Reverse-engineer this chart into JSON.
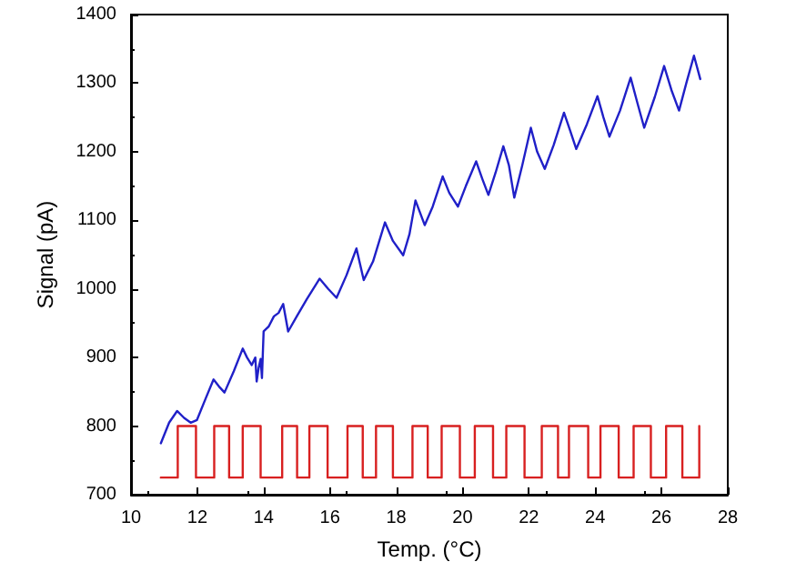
{
  "chart_data": {
    "type": "line",
    "xlabel": "Temp. (°C)",
    "ylabel": "Signal (pA)",
    "xlim": [
      10,
      28
    ],
    "xticks": [
      10,
      12,
      14,
      16,
      18,
      20,
      22,
      24,
      26,
      28
    ],
    "ylim": [
      700,
      1400
    ],
    "yticks": [
      700,
      800,
      900,
      1000,
      1100,
      1200,
      1300,
      1400
    ],
    "grid": false,
    "marker": "none",
    "line_style": "solid",
    "series": [
      {
        "color": "#2020c8",
        "x": [
          10.9,
          11.15,
          11.39,
          11.6,
          11.8,
          11.99,
          12.25,
          12.49,
          12.65,
          12.82,
          13.1,
          13.37,
          13.5,
          13.64,
          13.75,
          13.79,
          13.85,
          13.91,
          13.95,
          14.0,
          14.15,
          14.31,
          14.45,
          14.59,
          14.74,
          15.0,
          15.3,
          15.69,
          15.95,
          16.2,
          16.5,
          16.8,
          17.02,
          17.3,
          17.66,
          17.9,
          18.21,
          18.4,
          18.58,
          18.86,
          19.1,
          19.4,
          19.6,
          19.86,
          20.1,
          20.41,
          20.6,
          20.78,
          21.0,
          21.23,
          21.4,
          21.56,
          21.8,
          22.06,
          22.25,
          22.48,
          22.75,
          23.06,
          23.25,
          23.43,
          23.75,
          24.07,
          24.25,
          24.43,
          24.75,
          25.07,
          25.28,
          25.48,
          25.8,
          26.08,
          26.3,
          26.53,
          26.75,
          26.98,
          27.17
        ],
        "values": [
          775,
          805,
          822,
          812,
          805,
          809,
          840,
          868,
          858,
          849,
          880,
          913,
          900,
          889,
          900,
          865,
          885,
          898,
          870,
          938,
          945,
          960,
          965,
          978,
          938,
          960,
          985,
          1015,
          1000,
          987,
          1020,
          1059,
          1013,
          1040,
          1097,
          1070,
          1049,
          1080,
          1129,
          1093,
          1120,
          1164,
          1140,
          1120,
          1150,
          1186,
          1160,
          1137,
          1170,
          1208,
          1180,
          1133,
          1180,
          1235,
          1200,
          1175,
          1210,
          1257,
          1230,
          1204,
          1240,
          1281,
          1250,
          1222,
          1260,
          1308,
          1270,
          1235,
          1280,
          1325,
          1290,
          1260,
          1300,
          1340,
          1306
        ]
      },
      {
        "color": "#d82020",
        "x": [
          10.9,
          11.41,
          11.41,
          11.96,
          11.96,
          12.51,
          12.51,
          12.96,
          12.96,
          13.37,
          13.37,
          13.91,
          13.91,
          14.56,
          14.56,
          15.01,
          15.01,
          15.38,
          15.38,
          15.93,
          15.93,
          16.53,
          16.53,
          16.99,
          16.99,
          17.39,
          17.39,
          17.9,
          17.9,
          18.49,
          18.49,
          18.95,
          18.95,
          19.37,
          19.37,
          19.92,
          19.92,
          20.37,
          20.37,
          20.92,
          20.92,
          21.32,
          21.32,
          21.87,
          21.87,
          22.39,
          22.39,
          22.88,
          22.88,
          23.21,
          23.21,
          23.79,
          23.79,
          24.16,
          24.16,
          24.71,
          24.71,
          25.16,
          25.16,
          25.68,
          25.68,
          26.14,
          26.14,
          26.63,
          26.63,
          27.14,
          27.14
        ],
        "values": [
          725,
          725,
          800,
          800,
          725,
          725,
          800,
          800,
          725,
          725,
          800,
          800,
          725,
          725,
          800,
          800,
          725,
          725,
          800,
          800,
          725,
          725,
          800,
          800,
          725,
          725,
          800,
          800,
          725,
          725,
          800,
          800,
          725,
          725,
          800,
          800,
          725,
          725,
          800,
          800,
          725,
          725,
          800,
          800,
          725,
          725,
          800,
          800,
          725,
          725,
          800,
          800,
          725,
          725,
          800,
          800,
          725,
          725,
          800,
          800,
          725,
          725,
          800,
          800,
          725,
          725,
          800
        ]
      }
    ]
  }
}
